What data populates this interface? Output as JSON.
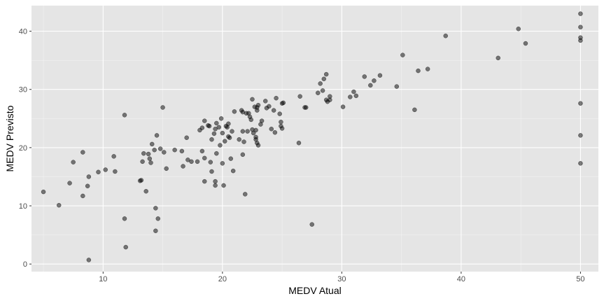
{
  "chart_data": {
    "type": "scatter",
    "xlabel": "MEDV Atual",
    "ylabel": "MEDV Previsto",
    "xlim": [
      4.0,
      51.5
    ],
    "ylim": [
      -1.3,
      44.4
    ],
    "xticks": [
      10,
      20,
      30,
      40,
      50
    ],
    "yticks": [
      0,
      10,
      20,
      30,
      40
    ],
    "xtick_labels": [
      "10",
      "20",
      "30",
      "40",
      "50"
    ],
    "ytick_labels": [
      "0",
      "10",
      "20",
      "30",
      "40"
    ],
    "grid": true,
    "colors": {
      "panel": "#e5e5e5",
      "grid_major": "#ffffff",
      "point": "#000000",
      "point_opacity": 0.5
    },
    "points": [
      [
        5.0,
        12.4
      ],
      [
        6.3,
        10.1
      ],
      [
        7.2,
        13.9
      ],
      [
        7.5,
        17.5
      ],
      [
        8.3,
        19.2
      ],
      [
        8.3,
        11.7
      ],
      [
        8.7,
        13.4
      ],
      [
        8.8,
        15.0
      ],
      [
        8.8,
        0.7
      ],
      [
        9.6,
        15.8
      ],
      [
        10.2,
        16.2
      ],
      [
        10.9,
        18.5
      ],
      [
        11.0,
        15.9
      ],
      [
        11.8,
        25.6
      ],
      [
        11.8,
        7.8
      ],
      [
        11.9,
        2.9
      ],
      [
        13.1,
        14.3
      ],
      [
        13.2,
        14.4
      ],
      [
        13.3,
        17.6
      ],
      [
        13.4,
        19.0
      ],
      [
        13.6,
        12.5
      ],
      [
        13.8,
        18.9
      ],
      [
        13.9,
        18.1
      ],
      [
        14.0,
        17.4
      ],
      [
        14.1,
        20.6
      ],
      [
        14.3,
        19.6
      ],
      [
        14.4,
        9.6
      ],
      [
        14.4,
        5.7
      ],
      [
        14.5,
        22.1
      ],
      [
        14.6,
        7.8
      ],
      [
        14.8,
        19.8
      ],
      [
        15.0,
        26.9
      ],
      [
        15.1,
        19.2
      ],
      [
        15.3,
        16.4
      ],
      [
        16.0,
        19.6
      ],
      [
        16.6,
        19.4
      ],
      [
        16.7,
        16.8
      ],
      [
        17.0,
        21.7
      ],
      [
        17.1,
        17.9
      ],
      [
        17.4,
        17.6
      ],
      [
        17.9,
        17.6
      ],
      [
        18.1,
        23.0
      ],
      [
        18.3,
        23.4
      ],
      [
        18.3,
        19.4
      ],
      [
        18.5,
        24.6
      ],
      [
        18.5,
        18.2
      ],
      [
        18.5,
        14.2
      ],
      [
        18.8,
        23.8
      ],
      [
        18.9,
        23.7
      ],
      [
        19.0,
        17.5
      ],
      [
        19.1,
        15.9
      ],
      [
        19.1,
        21.4
      ],
      [
        19.3,
        22.4
      ],
      [
        19.4,
        23.2
      ],
      [
        19.4,
        14.2
      ],
      [
        19.4,
        13.5
      ],
      [
        19.5,
        24.2
      ],
      [
        19.5,
        19.0
      ],
      [
        19.7,
        23.5
      ],
      [
        19.8,
        20.4
      ],
      [
        19.9,
        25.0
      ],
      [
        20.0,
        22.5
      ],
      [
        20.0,
        17.3
      ],
      [
        20.1,
        13.5
      ],
      [
        20.2,
        21.1
      ],
      [
        20.3,
        23.7
      ],
      [
        20.4,
        23.5
      ],
      [
        20.5,
        21.9
      ],
      [
        20.5,
        24.1
      ],
      [
        20.6,
        21.7
      ],
      [
        20.7,
        18.1
      ],
      [
        20.8,
        22.8
      ],
      [
        20.9,
        16.0
      ],
      [
        21.0,
        26.2
      ],
      [
        21.4,
        21.4
      ],
      [
        21.6,
        26.4
      ],
      [
        21.7,
        26.1
      ],
      [
        21.7,
        22.8
      ],
      [
        21.7,
        18.8
      ],
      [
        21.8,
        21.0
      ],
      [
        21.9,
        12.0
      ],
      [
        22.0,
        25.9
      ],
      [
        22.1,
        22.8
      ],
      [
        22.2,
        25.9
      ],
      [
        22.3,
        25.3
      ],
      [
        22.4,
        24.8
      ],
      [
        22.5,
        28.3
      ],
      [
        22.5,
        23.1
      ],
      [
        22.6,
        22.5
      ],
      [
        22.7,
        27.0
      ],
      [
        22.8,
        23.0
      ],
      [
        22.8,
        21.8
      ],
      [
        22.8,
        21.4
      ],
      [
        22.9,
        26.9
      ],
      [
        22.9,
        26.4
      ],
      [
        22.9,
        20.8
      ],
      [
        23.0,
        27.3
      ],
      [
        23.0,
        20.4
      ],
      [
        23.2,
        24.0
      ],
      [
        23.3,
        24.6
      ],
      [
        23.6,
        28.0
      ],
      [
        23.7,
        26.8
      ],
      [
        23.9,
        27.1
      ],
      [
        24.1,
        23.2
      ],
      [
        24.3,
        26.4
      ],
      [
        24.4,
        22.6
      ],
      [
        24.5,
        28.5
      ],
      [
        24.8,
        25.8
      ],
      [
        24.9,
        24.4
      ],
      [
        24.9,
        23.7
      ],
      [
        25.0,
        27.6
      ],
      [
        25.0,
        23.3
      ],
      [
        25.1,
        27.7
      ],
      [
        26.4,
        20.8
      ],
      [
        26.5,
        28.8
      ],
      [
        26.9,
        26.9
      ],
      [
        27.0,
        26.9
      ],
      [
        27.5,
        6.8
      ],
      [
        28.0,
        29.4
      ],
      [
        28.2,
        31.0
      ],
      [
        28.4,
        29.8
      ],
      [
        28.5,
        31.8
      ],
      [
        28.7,
        28.2
      ],
      [
        28.7,
        32.6
      ],
      [
        28.8,
        27.9
      ],
      [
        29.0,
        28.8
      ],
      [
        29.0,
        28.2
      ],
      [
        30.1,
        27.0
      ],
      [
        30.7,
        28.7
      ],
      [
        31.0,
        29.6
      ],
      [
        31.2,
        28.9
      ],
      [
        31.9,
        32.2
      ],
      [
        32.4,
        30.7
      ],
      [
        32.7,
        31.5
      ],
      [
        33.2,
        32.4
      ],
      [
        34.6,
        30.5
      ],
      [
        35.1,
        35.9
      ],
      [
        36.1,
        26.5
      ],
      [
        36.4,
        33.2
      ],
      [
        37.2,
        33.5
      ],
      [
        38.7,
        39.2
      ],
      [
        43.1,
        35.4
      ],
      [
        44.8,
        40.4
      ],
      [
        45.4,
        37.9
      ],
      [
        50.0,
        43.0
      ],
      [
        50.0,
        40.7
      ],
      [
        50.0,
        38.9
      ],
      [
        50.0,
        38.4
      ],
      [
        50.0,
        27.6
      ],
      [
        50.0,
        22.1
      ],
      [
        50.0,
        17.3
      ]
    ]
  }
}
